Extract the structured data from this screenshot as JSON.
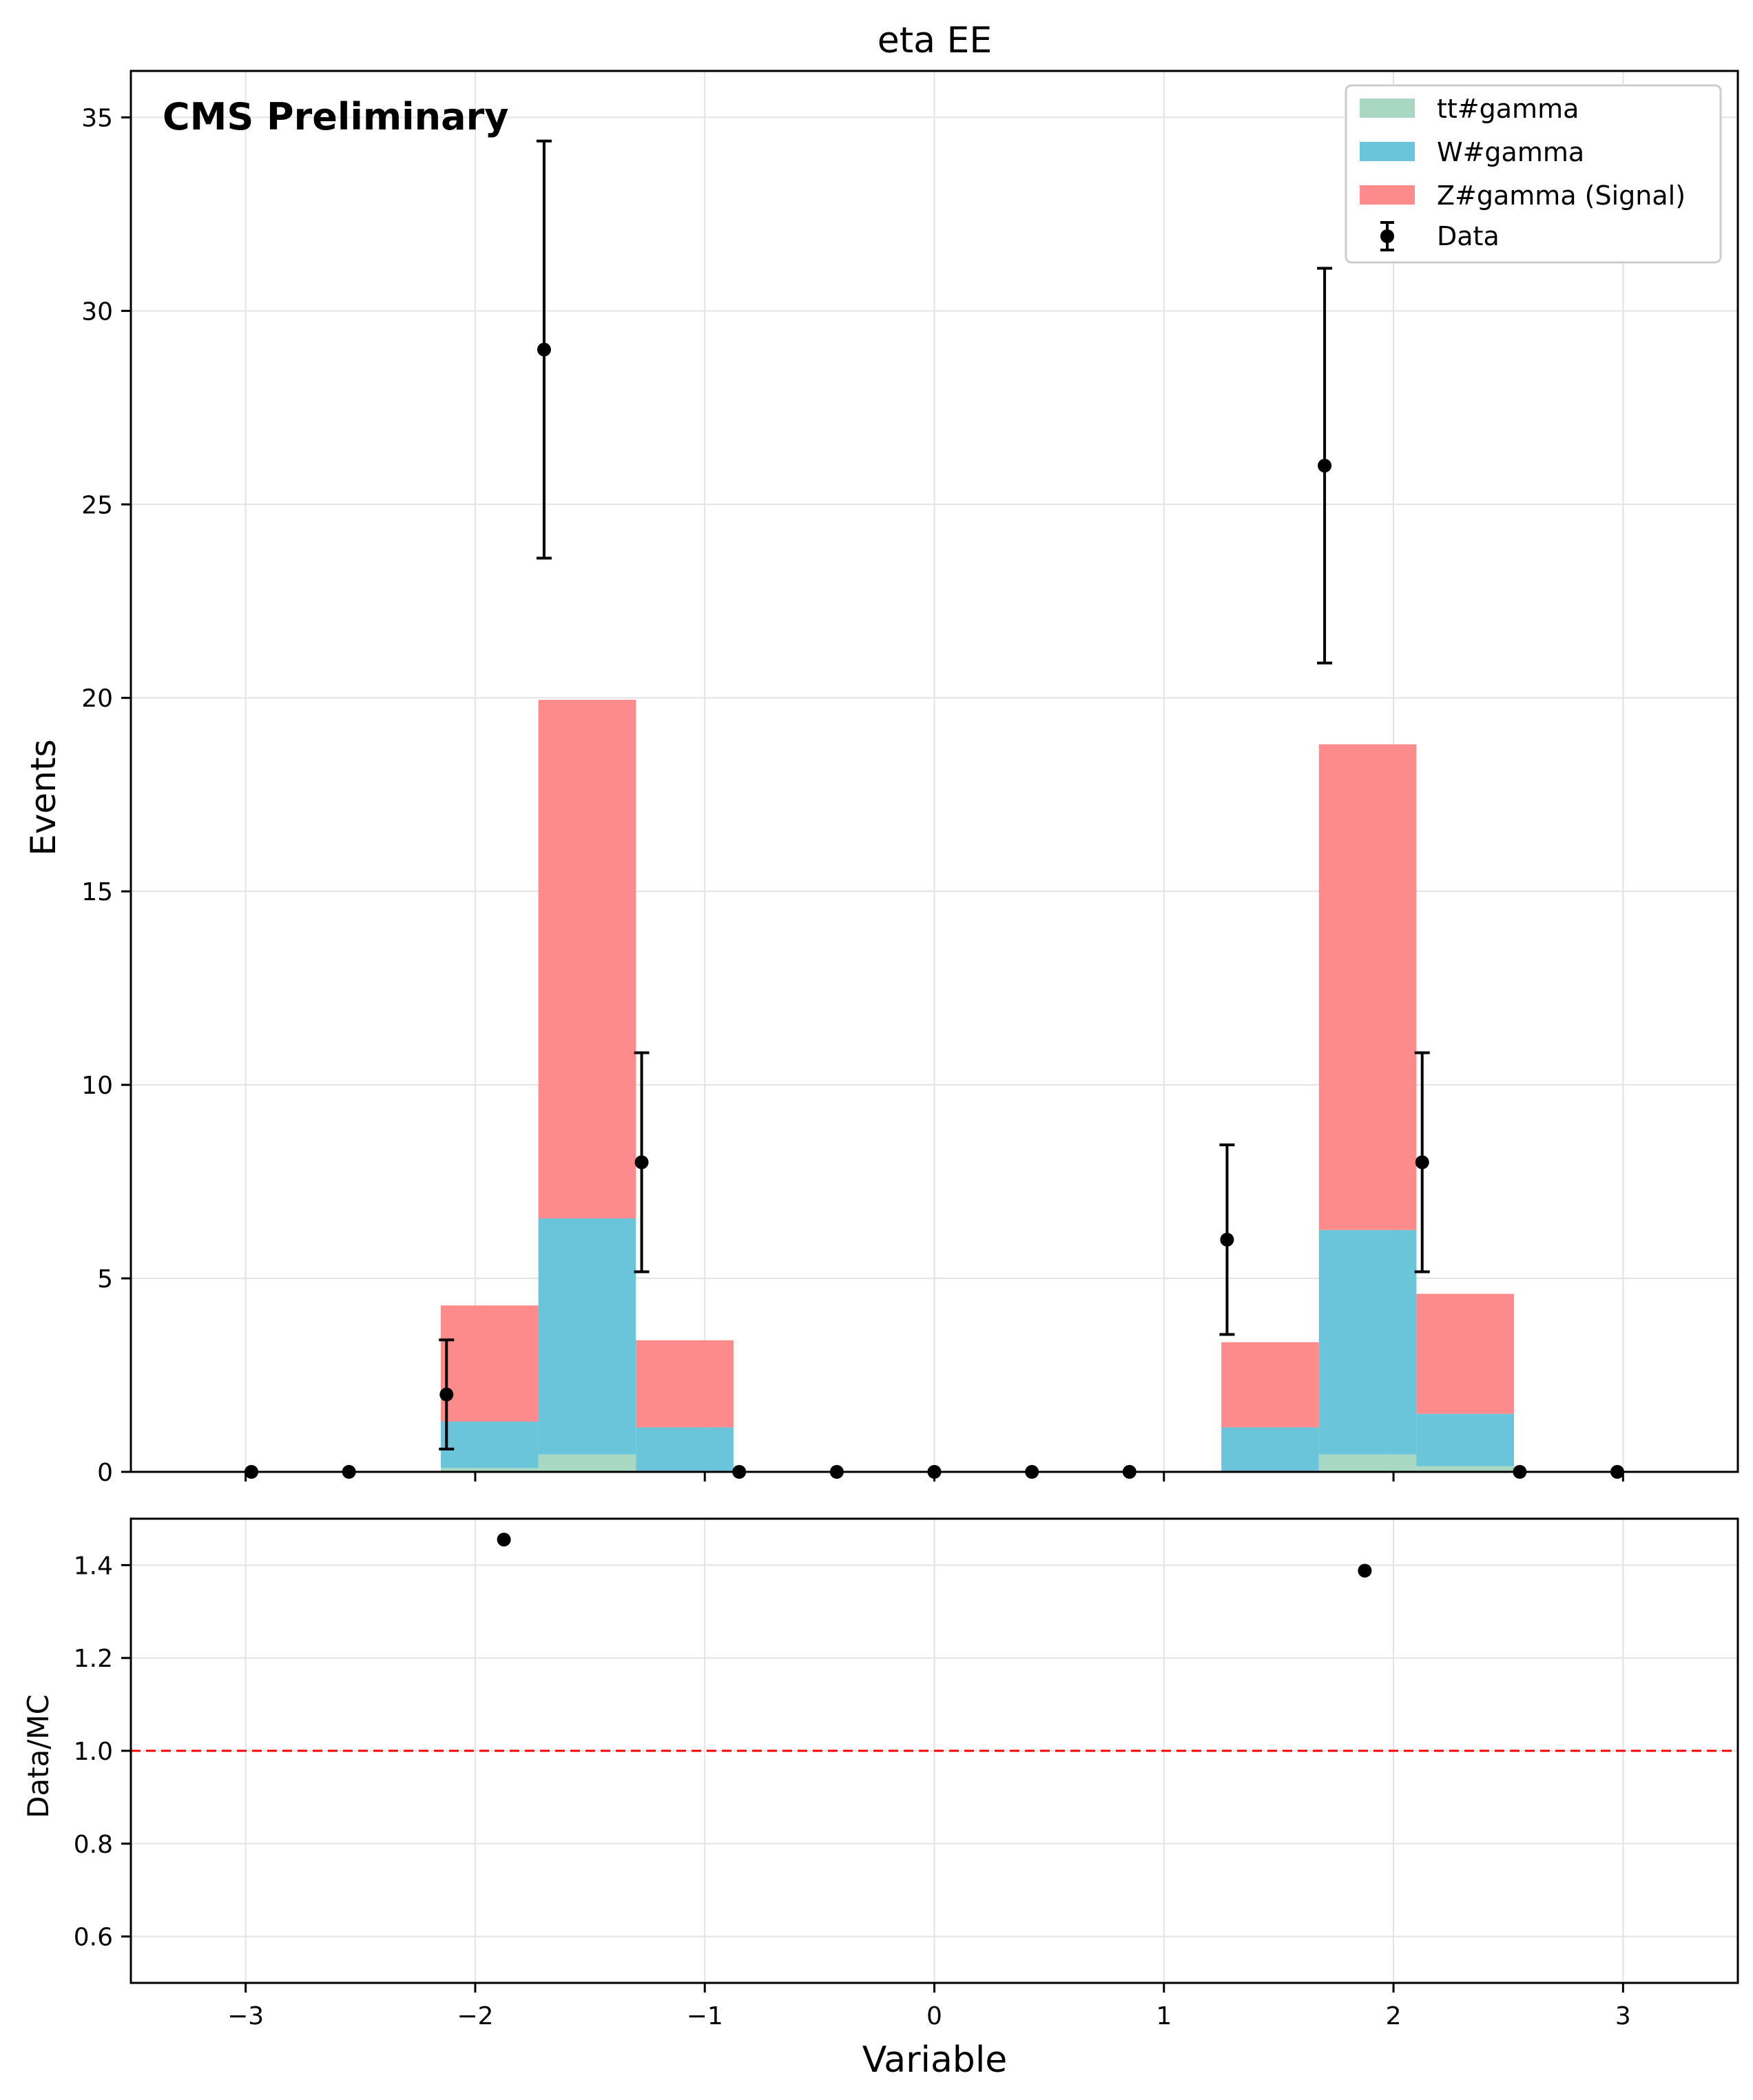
{
  "chart_data": [
    {
      "type": "bar",
      "stacked": true,
      "title": "eta EE",
      "ylabel": "Events",
      "xlabel": "",
      "annotation": "CMS Preliminary",
      "xlim": [
        -3.5,
        3.5
      ],
      "ylim": [
        0,
        36.2
      ],
      "xticks": [
        -3,
        -2,
        -1,
        0,
        1,
        2,
        3
      ],
      "yticks": [
        0,
        5,
        10,
        15,
        20,
        25,
        30,
        35
      ],
      "grid": true,
      "legend_position": "top-right",
      "bin_edges": [
        -3.0,
        -2.575,
        -2.15,
        -1.725,
        -1.3,
        -0.875,
        -0.45,
        -0.025,
        0.4,
        0.825,
        1.25,
        1.675,
        2.1,
        2.525,
        2.95
      ],
      "series": [
        {
          "name": "tt#gamma",
          "color": "#a8d8c2",
          "values": [
            0,
            0,
            0.1,
            0.45,
            0.0,
            0,
            0,
            0,
            0,
            0,
            0.0,
            0.45,
            0.15,
            0
          ]
        },
        {
          "name": "W#gamma",
          "color": "#6ac5da",
          "values": [
            0,
            0,
            1.2,
            6.1,
            1.15,
            0,
            0,
            0,
            0,
            0,
            1.15,
            5.8,
            1.35,
            0
          ]
        },
        {
          "name": "Z#gamma (Signal)",
          "color": "#fe8b8b",
          "values": [
            0,
            0,
            3.0,
            13.4,
            2.25,
            0,
            0,
            0,
            0,
            0,
            2.2,
            12.55,
            3.1,
            0
          ]
        }
      ],
      "data_points": {
        "name": "Data",
        "color": "#000000",
        "x": [
          -2.975,
          -2.55,
          -2.125,
          -1.7,
          -1.275,
          -0.85,
          -0.425,
          0.0,
          0.425,
          0.85,
          1.275,
          1.7,
          2.125,
          2.55,
          2.975
        ],
        "y": [
          0,
          0,
          2,
          29,
          8,
          0,
          0,
          0,
          0,
          0,
          6,
          26,
          8,
          0,
          0
        ],
        "yerr": [
          0,
          0,
          1.41,
          5.39,
          2.83,
          0,
          0,
          0,
          0,
          0,
          2.45,
          5.1,
          2.83,
          0,
          0
        ]
      }
    },
    {
      "type": "scatter",
      "ylabel": "Data/MC",
      "xlabel": "Variable",
      "xlim": [
        -3.5,
        3.5
      ],
      "ylim": [
        0.5,
        1.5
      ],
      "xticks": [
        -3,
        -2,
        -1,
        0,
        1,
        2,
        3
      ],
      "xtick_labels": [
        "−3",
        "−2",
        "−1",
        "0",
        "1",
        "2",
        "3"
      ],
      "yticks": [
        0.6,
        0.8,
        1.0,
        1.2,
        1.4
      ],
      "ytick_labels": [
        "0.6",
        "0.8",
        "1.0",
        "1.2",
        "1.4"
      ],
      "grid": true,
      "reference_line": {
        "y": 1.0,
        "color": "#ff0000",
        "style": "dashed"
      },
      "points": {
        "x": [
          -1.875,
          1.875
        ],
        "y": [
          1.455,
          1.388
        ],
        "color": "#000000"
      }
    }
  ]
}
